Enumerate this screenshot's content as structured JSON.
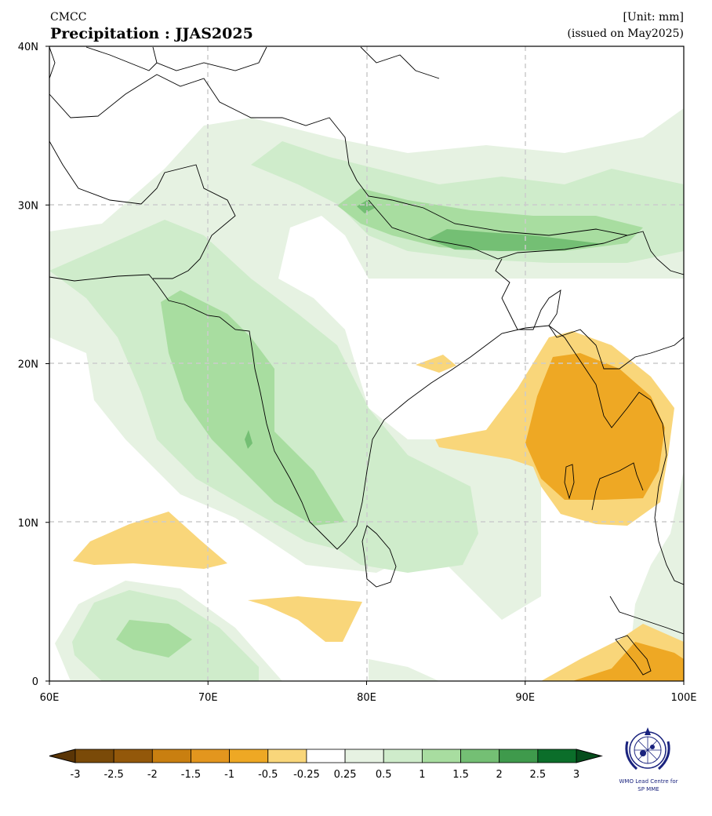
{
  "header": {
    "source": "CMCC",
    "title": "Precipitation : JJAS2025",
    "unit": "[Unit: mm]",
    "issued": "(issued on May2025)"
  },
  "map": {
    "lon_range": [
      60,
      100
    ],
    "lat_range": [
      0,
      40
    ],
    "x_ticks": [
      "60E",
      "70E",
      "80E",
      "90E",
      "100E"
    ],
    "y_ticks": [
      "40N",
      "30N",
      "20N",
      "10N",
      "0"
    ],
    "gridlines": true,
    "colors": {
      "green_025": "#e6f2e2",
      "green_05": "#cfeccb",
      "green_1": "#a8dda0",
      "green_15": "#74bf74",
      "orange_05": "#f9d67a",
      "orange_1": "#eea824"
    }
  },
  "colorbar": {
    "ticks": [
      "-3",
      "-2.5",
      "-2",
      "-1.5",
      "-1",
      "-0.5",
      "-0.25",
      "0.25",
      "0.5",
      "1",
      "1.5",
      "2",
      "2.5",
      "3"
    ],
    "colors": [
      "#7a4a08",
      "#93580a",
      "#c97f10",
      "#e3961e",
      "#eea824",
      "#f9d67a",
      "#ffffff",
      "#e6f2e2",
      "#cfeccb",
      "#a8dda0",
      "#74bf74",
      "#3f9a4c",
      "#0b6e2a"
    ],
    "under_color": "#5a3506",
    "over_color": "#064d1c"
  },
  "logo": {
    "line1": "WMO Lead Centre for",
    "line2": "SP MME"
  }
}
